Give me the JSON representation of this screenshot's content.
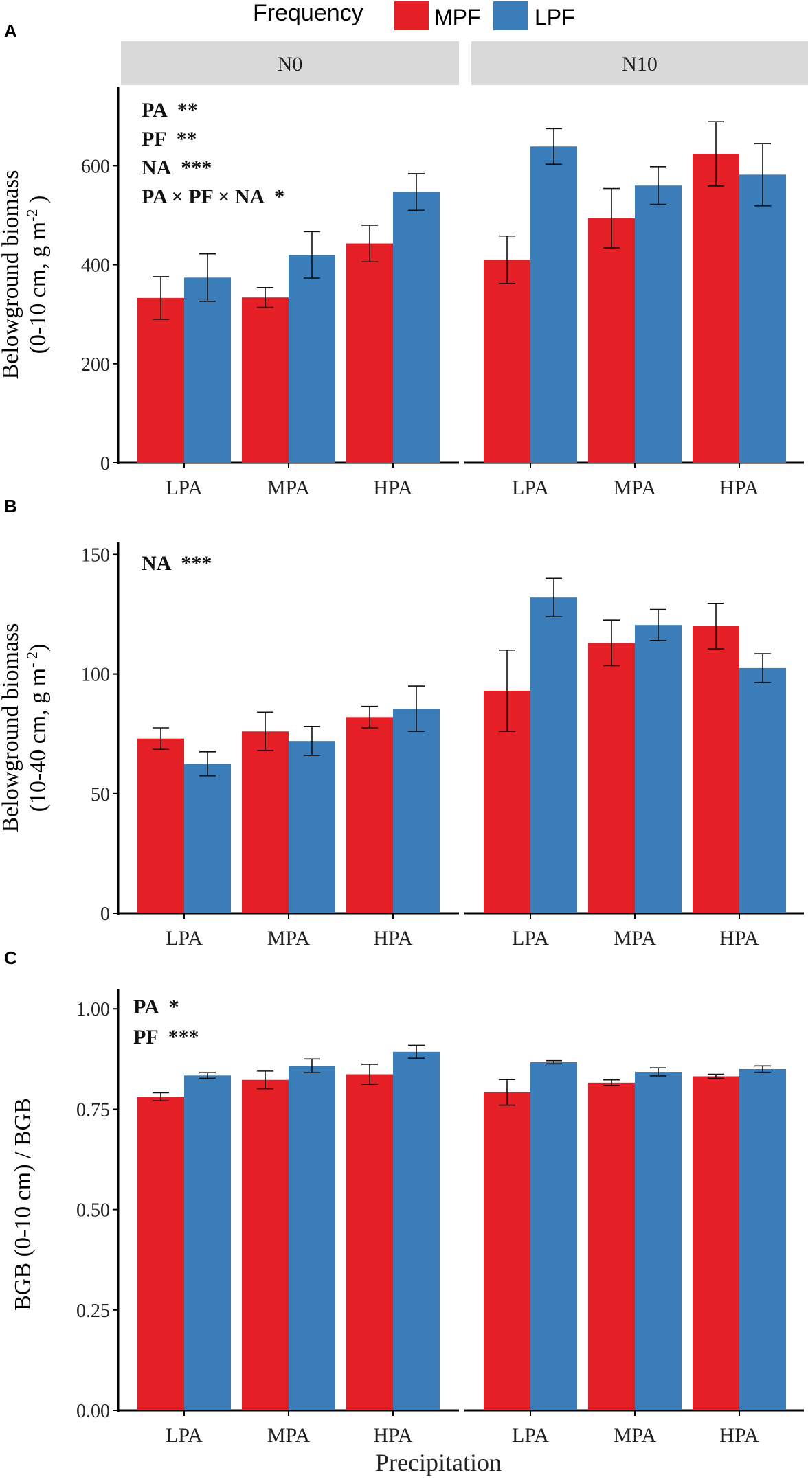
{
  "chart_data": [
    {
      "type": "bar",
      "panel_label": "A",
      "ylabel_line1": "Belowground biomass",
      "ylabel_line2": "(0-10 cm, g  m",
      "ylabel_sup": "-2",
      "ylabel_tail": " )",
      "ylim": [
        0,
        760
      ],
      "yticks": [
        0,
        200,
        400,
        600
      ],
      "ytick_labels": [
        "0",
        "200",
        "400",
        "600"
      ],
      "facets": [
        {
          "name": "N0",
          "categories": [
            "LPA",
            "MPA",
            "HPA"
          ],
          "series": [
            {
              "name": "MPF",
              "values": [
                333,
                334,
                443
              ],
              "errors": [
                43,
                20,
                37
              ]
            },
            {
              "name": "LPF",
              "values": [
                374,
                420,
                547
              ],
              "errors": [
                48,
                47,
                37
              ]
            }
          ]
        },
        {
          "name": "N10",
          "categories": [
            "LPA",
            "MPA",
            "HPA"
          ],
          "series": [
            {
              "name": "MPF",
              "values": [
                410,
                494,
                624
              ],
              "errors": [
                48,
                60,
                65
              ]
            },
            {
              "name": "LPF",
              "values": [
                639,
                560,
                582
              ],
              "errors": [
                36,
                38,
                63
              ]
            }
          ]
        }
      ],
      "annotations": [
        {
          "term": "PA",
          "stars": "**"
        },
        {
          "term": "PF",
          "stars": "**"
        },
        {
          "term": "NA",
          "stars": "***"
        },
        {
          "term": "PA × PF × NA",
          "stars": "*"
        }
      ]
    },
    {
      "type": "bar",
      "panel_label": "B",
      "ylabel_line1": "Belowground biomass",
      "ylabel_line2": "(10-40 cm, g m",
      "ylabel_sup": "- 2",
      "ylabel_tail": ")",
      "ylim": [
        0,
        155
      ],
      "yticks": [
        0,
        50,
        100,
        150
      ],
      "ytick_labels": [
        "0",
        "50",
        "100",
        "150"
      ],
      "facets": [
        {
          "name": "N0",
          "categories": [
            "LPA",
            "MPA",
            "HPA"
          ],
          "series": [
            {
              "name": "MPF",
              "values": [
                73,
                76,
                82
              ],
              "errors": [
                4.5,
                8,
                4.5
              ]
            },
            {
              "name": "LPF",
              "values": [
                62.5,
                72,
                85.5
              ],
              "errors": [
                5,
                6,
                9.5
              ]
            }
          ]
        },
        {
          "name": "N10",
          "categories": [
            "LPA",
            "MPA",
            "HPA"
          ],
          "series": [
            {
              "name": "MPF",
              "values": [
                93,
                113,
                120
              ],
              "errors": [
                17,
                9.5,
                9.5
              ]
            },
            {
              "name": "LPF",
              "values": [
                132,
                120.5,
                102.5
              ],
              "errors": [
                8,
                6.5,
                6
              ]
            }
          ]
        }
      ],
      "annotations": [
        {
          "term": "NA",
          "stars": "***"
        }
      ]
    },
    {
      "type": "bar",
      "panel_label": "C",
      "ylabel_line1": "BGB (0-10 cm) / BGB",
      "ylabel_line2": "",
      "ylabel_sup": "",
      "ylabel_tail": "",
      "ylim": [
        0,
        1.05
      ],
      "yticks": [
        0,
        0.25,
        0.5,
        0.75,
        1.0
      ],
      "ytick_labels": [
        "0.00",
        "0.25",
        "0.50",
        "0.75",
        "1.00"
      ],
      "facets": [
        {
          "name": "N0",
          "categories": [
            "LPA",
            "MPA",
            "HPA"
          ],
          "series": [
            {
              "name": "MPF",
              "values": [
                0.781,
                0.823,
                0.837
              ],
              "errors": [
                0.01,
                0.022,
                0.025
              ]
            },
            {
              "name": "LPF",
              "values": [
                0.834,
                0.858,
                0.893
              ],
              "errors": [
                0.007,
                0.017,
                0.016
              ]
            }
          ]
        },
        {
          "name": "N10",
          "categories": [
            "LPA",
            "MPA",
            "HPA"
          ],
          "series": [
            {
              "name": "MPF",
              "values": [
                0.792,
                0.816,
                0.832
              ],
              "errors": [
                0.032,
                0.007,
                0.005
              ]
            },
            {
              "name": "LPF",
              "values": [
                0.867,
                0.843,
                0.85
              ],
              "errors": [
                0.004,
                0.01,
                0.008
              ]
            }
          ]
        }
      ],
      "annotations": [
        {
          "term": "PA",
          "stars": "*"
        },
        {
          "term": "PF",
          "stars": "***"
        }
      ]
    }
  ],
  "legend": {
    "title": "Frequency",
    "items": [
      {
        "name": "MPF",
        "color": "#E41F26"
      },
      {
        "name": "LPF",
        "color": "#3A7DB8"
      }
    ]
  },
  "xlabel": "Precipitation",
  "colors": {
    "MPF": "#E41F26",
    "LPF": "#3A7DB8",
    "strip": "#D9D9D9"
  }
}
